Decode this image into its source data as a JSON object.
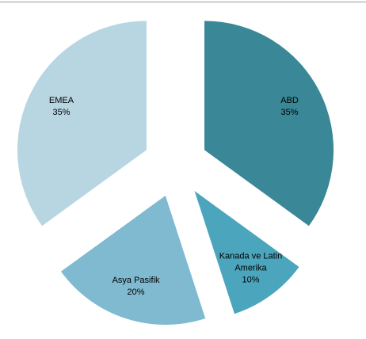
{
  "chart_data": {
    "type": "pie",
    "categories": [
      "ABD",
      "Kanada ve Latin Amerika",
      "Asya Pasifik",
      "EMEA"
    ],
    "values": [
      35,
      10,
      20,
      35
    ],
    "value_labels": [
      "35%",
      "10%",
      "20%",
      "35%"
    ],
    "colors": [
      "#3a8797",
      "#4ba5bc",
      "#7fbad0",
      "#b8d6e2"
    ]
  }
}
